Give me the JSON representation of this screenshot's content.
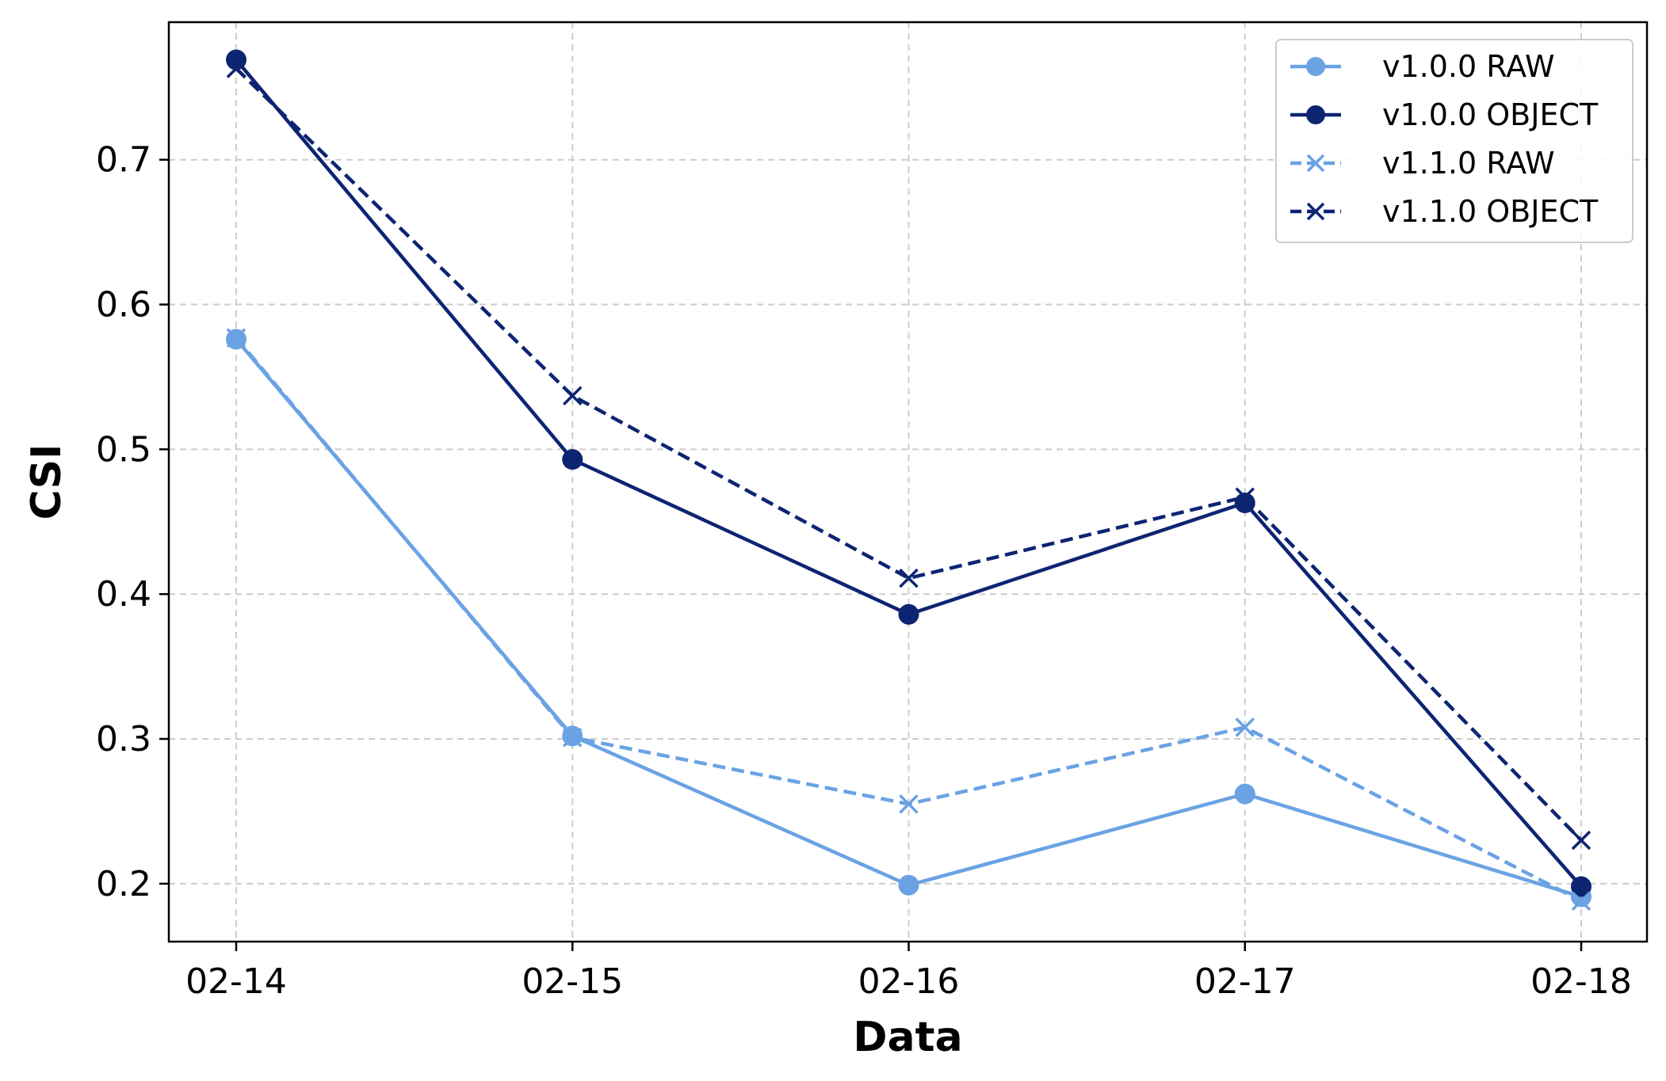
{
  "chart_data": {
    "type": "line",
    "title": "",
    "xlabel": "Data",
    "ylabel": "CSI",
    "categories": [
      "02-14",
      "02-15",
      "02-16",
      "02-17",
      "02-18"
    ],
    "ylim": [
      0.16,
      0.795
    ],
    "yticks": [
      0.2,
      0.3,
      0.4,
      0.5,
      0.6,
      0.7
    ],
    "ytick_labels": [
      "0.2",
      "0.3",
      "0.4",
      "0.5",
      "0.6",
      "0.7"
    ],
    "grid": true,
    "legend_position": "top-right",
    "series": [
      {
        "name": "v1.0.0 RAW",
        "values": [
          0.576,
          0.302,
          0.199,
          0.262,
          0.191
        ],
        "color": "#6aa2e4",
        "line_style": "solid",
        "marker": "circle"
      },
      {
        "name": "v1.0.0 OBJECT",
        "values": [
          0.769,
          0.493,
          0.386,
          0.463,
          0.198
        ],
        "color": "#0d2472",
        "line_style": "solid",
        "marker": "circle"
      },
      {
        "name": "v1.1.0 RAW",
        "values": [
          0.577,
          0.301,
          0.255,
          0.308,
          0.188
        ],
        "color": "#6aa2e4",
        "line_style": "dashed",
        "marker": "x"
      },
      {
        "name": "v1.1.0 OBJECT",
        "values": [
          0.763,
          0.537,
          0.411,
          0.467,
          0.23
        ],
        "color": "#0d2472",
        "line_style": "dashed",
        "marker": "x"
      }
    ]
  }
}
